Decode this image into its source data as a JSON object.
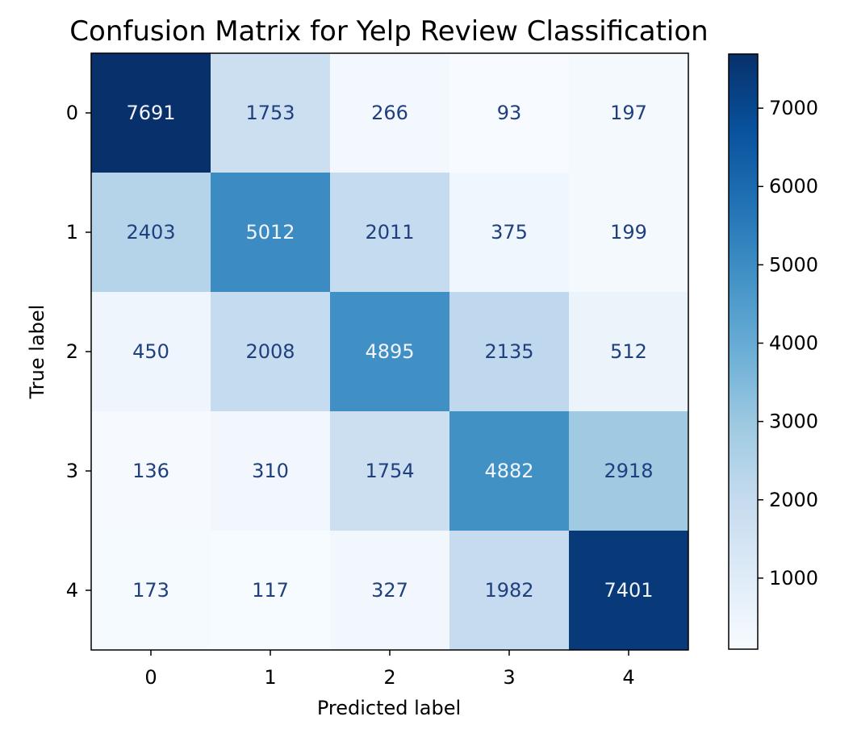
{
  "chart_data": {
    "type": "heatmap",
    "title": "Confusion Matrix for Yelp Review Classification",
    "xlabel": "Predicted label",
    "ylabel": "True label",
    "x_categories": [
      "0",
      "1",
      "2",
      "3",
      "4"
    ],
    "y_categories": [
      "0",
      "1",
      "2",
      "3",
      "4"
    ],
    "matrix": [
      [
        7691,
        1753,
        266,
        93,
        197
      ],
      [
        2403,
        5012,
        2011,
        375,
        199
      ],
      [
        450,
        2008,
        4895,
        2135,
        512
      ],
      [
        136,
        310,
        1754,
        4882,
        2918
      ],
      [
        173,
        117,
        327,
        1982,
        7401
      ]
    ],
    "colormap": "Blues",
    "value_range": [
      93,
      7691
    ],
    "colorbar_ticks": [
      1000,
      2000,
      3000,
      4000,
      5000,
      6000,
      7000
    ],
    "colorbar_tick_labels": [
      "1000",
      "2000",
      "3000",
      "4000",
      "5000",
      "6000",
      "7000"
    ],
    "text_color_dark": "#1f3f7f",
    "text_color_light": "#f2f5fb"
  }
}
